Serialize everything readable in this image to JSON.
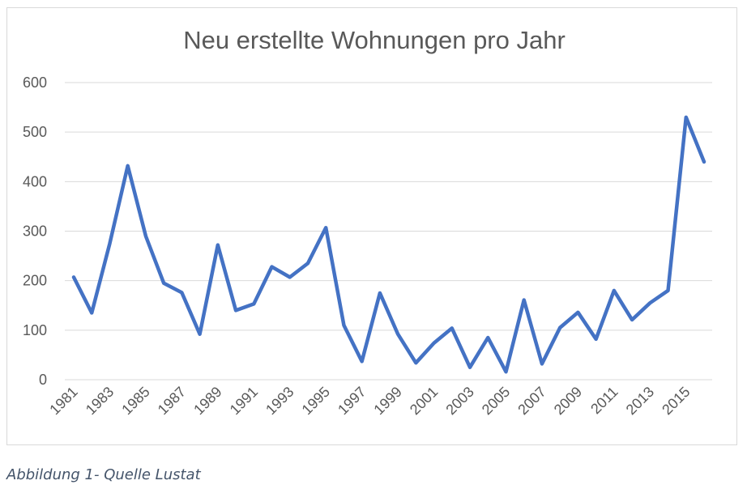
{
  "chart_data": {
    "type": "line",
    "title": "Neu erstellte Wohnungen pro Jahr",
    "xlabel": "",
    "ylabel": "",
    "ylim": [
      0,
      600
    ],
    "yticks": [
      0,
      100,
      200,
      300,
      400,
      500,
      600
    ],
    "x": [
      1981,
      1982,
      1983,
      1984,
      1985,
      1986,
      1987,
      1988,
      1989,
      1990,
      1991,
      1992,
      1993,
      1994,
      1995,
      1996,
      1997,
      1998,
      1999,
      2000,
      2001,
      2002,
      2003,
      2004,
      2005,
      2006,
      2007,
      2008,
      2009,
      2010,
      2011,
      2012,
      2013,
      2014,
      2015,
      2016
    ],
    "xtick_labels": [
      "1981",
      "1983",
      "1985",
      "1987",
      "1989",
      "1991",
      "1993",
      "1995",
      "1997",
      "1999",
      "2001",
      "2003",
      "2005",
      "2007",
      "2009",
      "2011",
      "2013",
      "2015"
    ],
    "series": [
      {
        "values": [
          207,
          135,
          275,
          432,
          290,
          195,
          176,
          92,
          272,
          140,
          153,
          228,
          207,
          235,
          307,
          110,
          37,
          175,
          92,
          34,
          74,
          104,
          25,
          85,
          16,
          161,
          32,
          105,
          136,
          82,
          180,
          121,
          155,
          180,
          530,
          440
        ],
        "color": "#4472c4"
      }
    ],
    "grid": true,
    "legend": "none",
    "gridline_color": "#d9d9d9"
  },
  "caption": "Abbildung 1- Quelle Lustat"
}
